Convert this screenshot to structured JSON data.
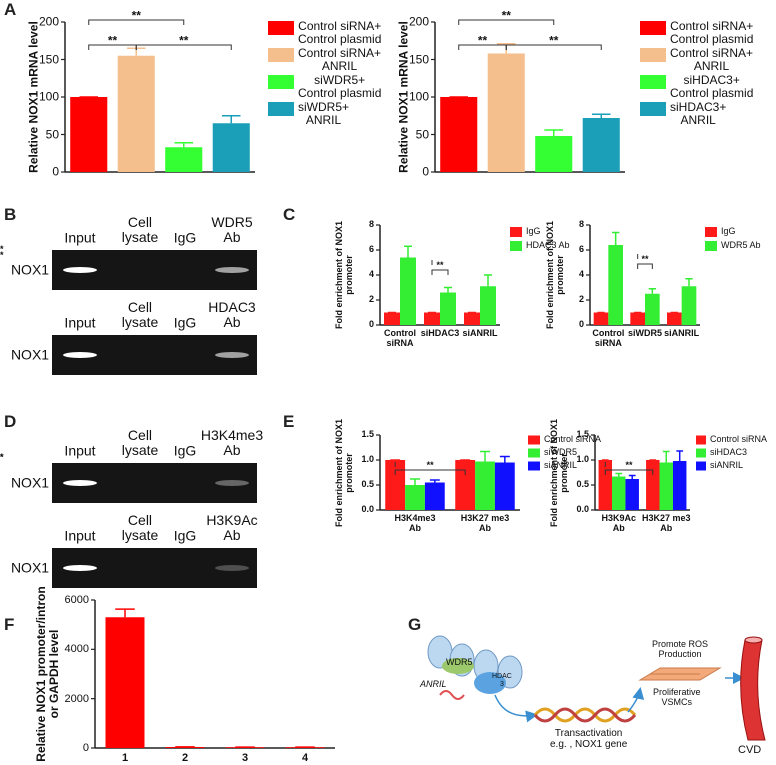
{
  "panel_labels": [
    "A",
    "B",
    "C",
    "D",
    "E",
    "F",
    "G"
  ],
  "chart_data": [
    {
      "type": "bar",
      "ylabel": "Relative NOX1 mRNA level",
      "ylim": [
        0,
        200
      ],
      "yticks": [
        0,
        50,
        100,
        150,
        200
      ],
      "series": [
        {
          "name": "Control siRNA+\nControl plasmid",
          "color": "#ff0000",
          "values": [
            100
          ],
          "errors": [
            0
          ]
        },
        {
          "name": "Control siRNA+\nANRIL",
          "color": "#f4bf8c",
          "values": [
            155
          ],
          "errors": [
            10
          ]
        },
        {
          "name": "siWDR5+\nControl plasmid",
          "color": "#33ff33",
          "values": [
            33
          ],
          "errors": [
            6
          ]
        },
        {
          "name": "siWDR5+\nANRIL",
          "color": "#1b9fb8",
          "values": [
            65
          ],
          "errors": [
            10
          ]
        }
      ],
      "annotations": [
        "**",
        "**",
        "**"
      ]
    },
    {
      "type": "bar",
      "ylabel": "Relative NOX1 mRNA level",
      "ylim": [
        0,
        200
      ],
      "yticks": [
        0,
        50,
        100,
        150,
        200
      ],
      "series": [
        {
          "name": "Control siRNA+\nControl plasmid",
          "color": "#ff0000",
          "values": [
            100
          ],
          "errors": [
            0
          ]
        },
        {
          "name": "Control siRNA+\nANRIL",
          "color": "#f4bf8c",
          "values": [
            158
          ],
          "errors": [
            13
          ]
        },
        {
          "name": "siHDAC3+\nControl plasmid",
          "color": "#33ff33",
          "values": [
            48
          ],
          "errors": [
            8
          ]
        },
        {
          "name": "siHDAC3+\nANRIL",
          "color": "#1b9fb8",
          "values": [
            72
          ],
          "errors": [
            5
          ]
        }
      ],
      "annotations": [
        "**",
        "**",
        "**"
      ]
    },
    {
      "type": "bar",
      "ylabel": "Fold enrichment of NOX1\npromoter",
      "ylim": [
        0,
        8
      ],
      "yticks": [
        0,
        2,
        4,
        6,
        8
      ],
      "categories": [
        "Control\nsiRNA",
        "siHDAC3",
        "siANRIL"
      ],
      "series": [
        {
          "name": "IgG",
          "color": "#ff1a1a",
          "values": [
            1,
            1,
            1
          ],
          "errors": [
            0,
            0,
            0
          ]
        },
        {
          "name": "HDAC3 Ab",
          "color": "#33ee33",
          "values": [
            5.4,
            2.6,
            3.1
          ],
          "errors": [
            0.9,
            0.4,
            0.9
          ]
        }
      ],
      "annotations": [
        "**",
        "**"
      ]
    },
    {
      "type": "bar",
      "ylabel": "Fold enrichment of NOX1\npromoter",
      "ylim": [
        0,
        8
      ],
      "yticks": [
        0,
        2,
        4,
        6,
        8
      ],
      "categories": [
        "Control\nsiRNA",
        "siWDR5",
        "siANRIL"
      ],
      "series": [
        {
          "name": "IgG",
          "color": "#ff1a1a",
          "values": [
            1,
            1,
            1
          ],
          "errors": [
            0,
            0,
            0
          ]
        },
        {
          "name": "WDR5 Ab",
          "color": "#33ee33",
          "values": [
            6.4,
            2.5,
            3.1
          ],
          "errors": [
            1.0,
            0.4,
            0.6
          ]
        }
      ],
      "annotations": [
        "**",
        "**"
      ]
    },
    {
      "type": "bar",
      "ylabel": "Fold enrichment of NOX1\npromoter",
      "ylim": [
        0,
        1.5
      ],
      "yticks": [
        {
          "value": 0,
          "label": "0.0"
        },
        {
          "value": 0.5,
          "label": "0.5"
        },
        {
          "value": 1,
          "label": "1.0"
        },
        {
          "value": 1.5,
          "label": "1.5"
        }
      ],
      "categories": [
        "H3K4me3\nAb",
        "H3K27 me3\nAb"
      ],
      "series": [
        {
          "name": "Control siRNA",
          "color": "#ff1a1a",
          "values": [
            1.0,
            1.0
          ],
          "errors": [
            0,
            0
          ]
        },
        {
          "name": "siWDR5",
          "color": "#33ee33",
          "values": [
            0.5,
            0.97
          ],
          "errors": [
            0.12,
            0.2
          ]
        },
        {
          "name": "siANRIL",
          "color": "#1010ff",
          "values": [
            0.55,
            0.95
          ],
          "errors": [
            0.05,
            0.12
          ]
        }
      ],
      "annotations": [
        "**",
        "**"
      ]
    },
    {
      "type": "bar",
      "ylabel": "Fold enrichment of NOX1\npromoter",
      "ylim": [
        0,
        1.5
      ],
      "yticks": [
        {
          "value": 0,
          "label": "0.0"
        },
        {
          "value": 0.5,
          "label": "0.5"
        },
        {
          "value": 1,
          "label": "1.0"
        },
        {
          "value": 1.5,
          "label": "1.5"
        }
      ],
      "categories": [
        "H3K9Ac\nAb",
        "H3K27 me3\nAb"
      ],
      "series": [
        {
          "name": "Control siRNA",
          "color": "#ff1a1a",
          "values": [
            1.0,
            1.0
          ],
          "errors": [
            0,
            0
          ]
        },
        {
          "name": "siHDAC3",
          "color": "#33ee33",
          "values": [
            0.67,
            0.95
          ],
          "errors": [
            0.06,
            0.22
          ]
        },
        {
          "name": "siANRIL",
          "color": "#1010ff",
          "values": [
            0.62,
            0.98
          ],
          "errors": [
            0.07,
            0.2
          ]
        }
      ],
      "annotations": [
        "**",
        "**"
      ]
    },
    {
      "type": "bar",
      "ylabel": "Relative NOX1 promoter/intron\nor GAPDH level",
      "ylim": [
        0,
        6000
      ],
      "yticks": [
        0,
        2000,
        4000,
        6000
      ],
      "categories": [
        "1",
        "2",
        "3",
        "4"
      ],
      "color": "#ff0000",
      "values": [
        5300,
        40,
        30,
        30
      ],
      "errors": [
        330,
        5,
        5,
        5
      ]
    }
  ],
  "gels": [
    {
      "lanes": [
        "Input",
        "Cell\nlysate",
        "IgG",
        "WDR5\nAb"
      ],
      "row_label": "NOX1"
    },
    {
      "lanes": [
        "Input",
        "Cell\nlysate",
        "IgG",
        "HDAC3\nAb"
      ],
      "row_label": "NOX1"
    },
    {
      "lanes": [
        "Input",
        "Cell\nlysate",
        "IgG",
        "H3K4me3\nAb"
      ],
      "row_label": "NOX1"
    },
    {
      "lanes": [
        "Input",
        "Cell\nlysate",
        "IgG",
        "H3K9Ac\nAb"
      ],
      "row_label": "NOX1"
    }
  ],
  "diagram": {
    "wdr5": "WDR5",
    "hdac3": "HDAC\n3",
    "anril": "ANRIL",
    "transactivation": "Transactivation\ne.g. , NOX1 gene",
    "ros": "Promote ROS\nProduction",
    "vsmc": "Proliferative\nVSMCs",
    "cvd": "CVD"
  }
}
